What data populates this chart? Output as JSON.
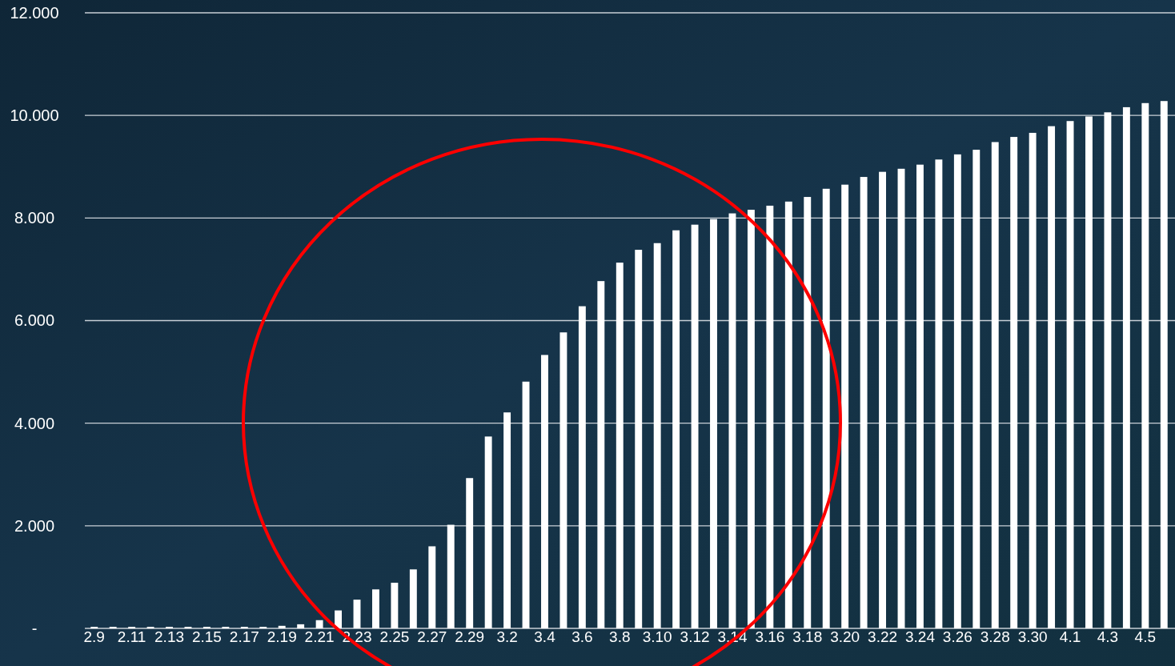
{
  "chart_data": {
    "type": "bar",
    "categories": [
      "2.9",
      null,
      "2.11",
      null,
      "2.13",
      null,
      "2.15",
      null,
      "2.17",
      null,
      "2.19",
      null,
      "2.21",
      null,
      "2.23",
      null,
      "2.25",
      null,
      "2.27",
      null,
      "2.29",
      null,
      "3.2",
      null,
      "3.4",
      null,
      "3.6",
      null,
      "3.8",
      null,
      "3.10",
      null,
      "3.12",
      null,
      "3.14",
      null,
      "3.16",
      null,
      "3.18",
      null,
      "3.20",
      null,
      "3.22",
      null,
      "3.24",
      null,
      "3.26",
      null,
      "3.28",
      null,
      "3.30",
      null,
      "4.1",
      null,
      "4.3",
      null,
      "4.5",
      null
    ],
    "values": [
      0.03,
      0.03,
      0.03,
      0.03,
      0.03,
      0.03,
      0.03,
      0.03,
      0.03,
      0.03,
      0.05,
      0.08,
      0.16,
      0.35,
      0.56,
      0.76,
      0.89,
      1.15,
      1.6,
      2.02,
      2.93,
      3.74,
      4.21,
      4.81,
      5.33,
      5.77,
      6.28,
      6.77,
      7.13,
      7.38,
      7.51,
      7.76,
      7.87,
      7.98,
      8.09,
      8.16,
      8.24,
      8.32,
      8.41,
      8.57,
      8.65,
      8.8,
      8.9,
      8.96,
      9.04,
      9.14,
      9.24,
      9.33,
      9.48,
      9.58,
      9.66,
      9.79,
      9.89,
      9.98,
      10.06,
      10.16,
      10.24,
      10.28
    ],
    "color": "#ffffff",
    "ylim": [
      0,
      12
    ],
    "yticks": [
      {
        "value": 0,
        "label": "-"
      },
      {
        "value": 2,
        "label": "2.000"
      },
      {
        "value": 4,
        "label": "4.000"
      },
      {
        "value": 6,
        "label": "6.000"
      },
      {
        "value": 8,
        "label": "8.000"
      },
      {
        "value": 10,
        "label": "10.000"
      },
      {
        "value": 12,
        "label": "12.000"
      }
    ],
    "grid": "y"
  }
}
